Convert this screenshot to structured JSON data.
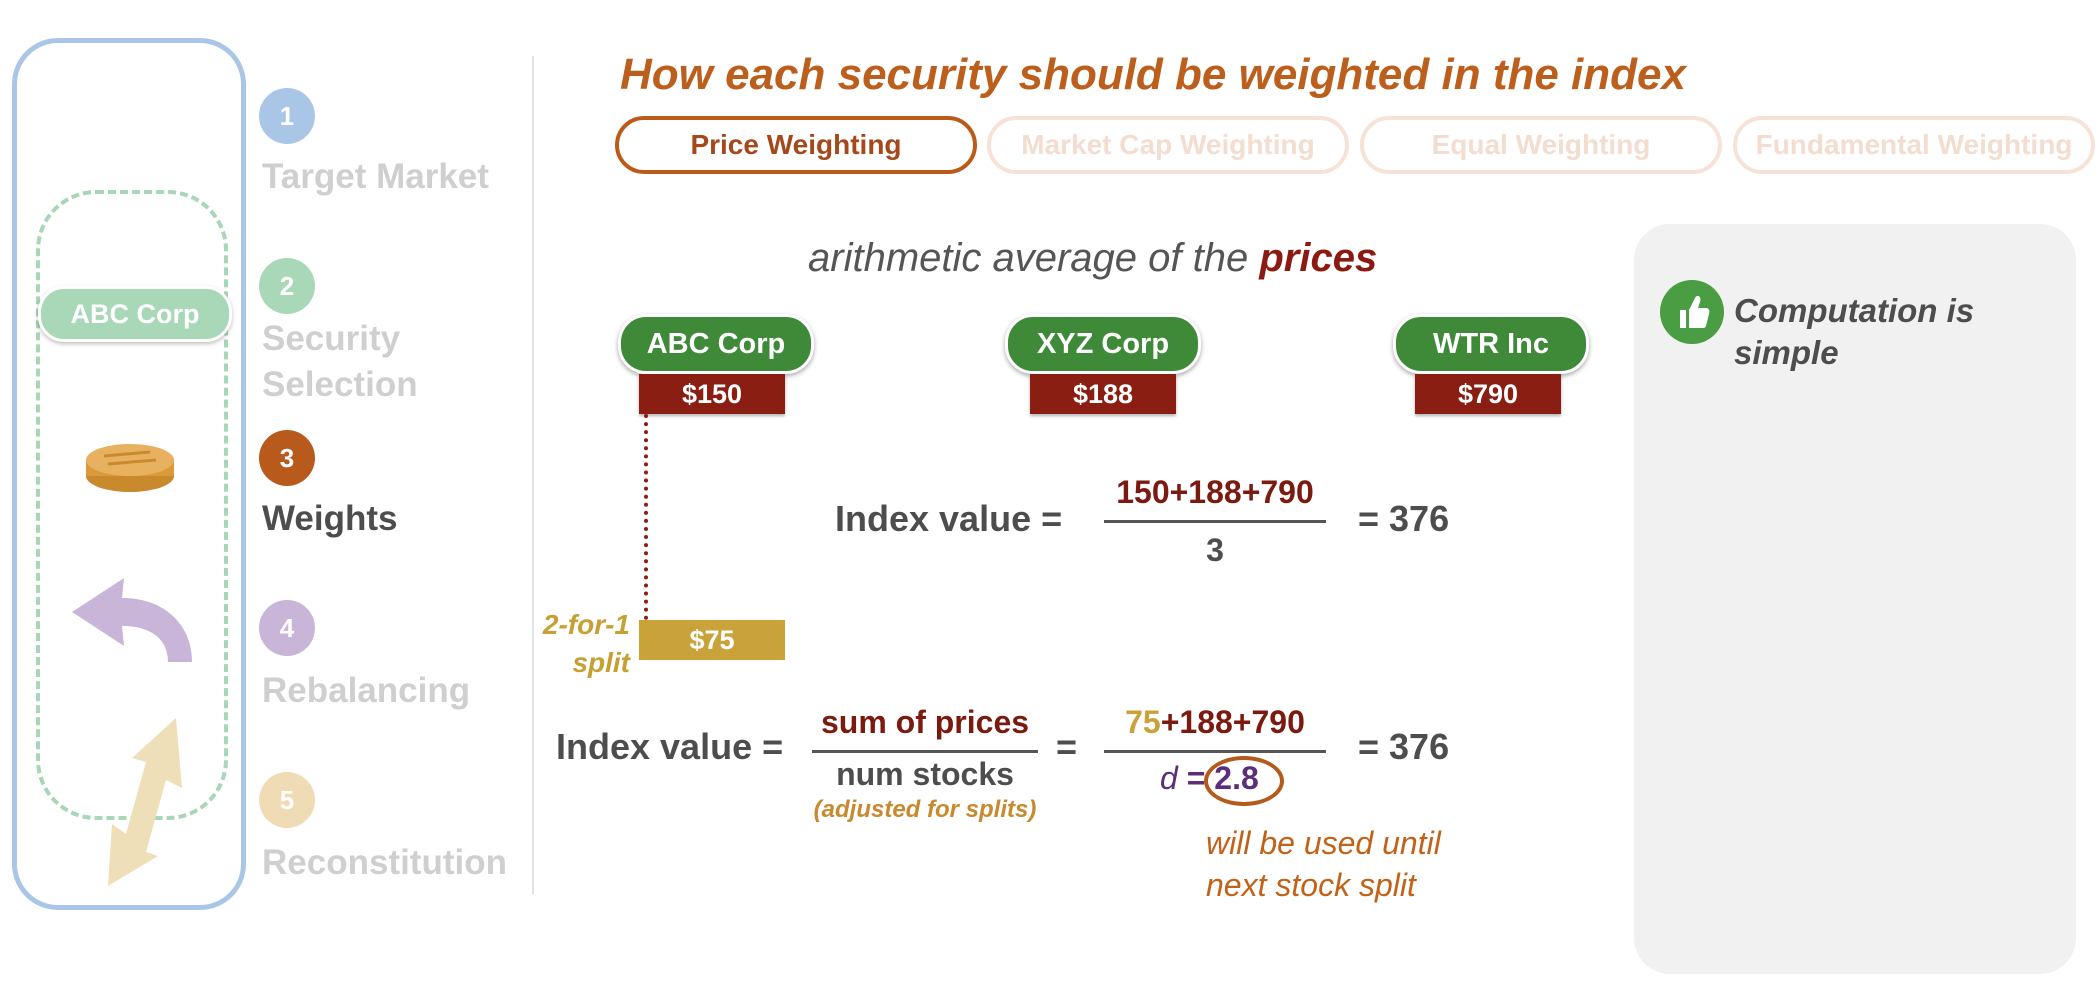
{
  "steps": [
    {
      "number": "1",
      "label": "Target Market",
      "circle_color": "#a9c6e6",
      "label_color": "#cfcfcf"
    },
    {
      "number": "2",
      "label": "Security\nSelection",
      "circle_color": "#a8d8b8",
      "label_color": "#cfcfcf"
    },
    {
      "number": "3",
      "label": "Weights",
      "circle_color": "#b95a1d",
      "label_color": "#4d4d4d"
    },
    {
      "number": "4",
      "label": "Rebalancing",
      "circle_color": "#c9b5d8",
      "label_color": "#cfcfcf"
    },
    {
      "number": "5",
      "label": "Reconstitution",
      "circle_color": "#f0dcb4",
      "label_color": "#cfcfcf"
    }
  ],
  "sidebar": {
    "pill_label": "ABC Corp",
    "icons": [
      "coin-icon",
      "curved-arrow-icon",
      "double-arrow-icon"
    ]
  },
  "header": {
    "title": "How each security should be weighted in the index"
  },
  "tabs": [
    {
      "label": "Price Weighting",
      "active": true
    },
    {
      "label": "Market Cap Weighting",
      "active": false
    },
    {
      "label": "Equal Weighting",
      "active": false
    },
    {
      "label": "Fundamental Weighting",
      "active": false
    }
  ],
  "definition": {
    "prefix": "arithmetic average of the ",
    "emphasis": "prices"
  },
  "securities": [
    {
      "name": "ABC Corp",
      "price": "$150"
    },
    {
      "name": "XYZ Corp",
      "price": "$188"
    },
    {
      "name": "WTR Inc",
      "price": "$790"
    }
  ],
  "split": {
    "label": "2-for-1\nsplit",
    "new_price": "$75"
  },
  "formula1": {
    "label": "Index value =",
    "numerator": "150+188+790",
    "denominator": "3",
    "result": "= 376"
  },
  "formula2": {
    "label": "Index value =",
    "numerator": "sum of prices",
    "denominator": "num stocks",
    "note": "(adjusted for splits)",
    "equals": "=",
    "numerator2_split": "75",
    "numerator2_rest": "+188+790",
    "divisor_symbol": "d",
    "divisor_eq": "=",
    "divisor_value": "2.8",
    "result": "= 376",
    "divisor_note": "will be used until\nnext stock split"
  },
  "pros": [
    {
      "text": "Computation is simple",
      "icon": "thumbs-up-icon"
    }
  ],
  "colors": {
    "accent": "#bc5e1c",
    "price_box": "#8b1e12",
    "company_pill": "#3f8a39",
    "split": "#c9a23a",
    "divisor": "#5b2d7a"
  }
}
